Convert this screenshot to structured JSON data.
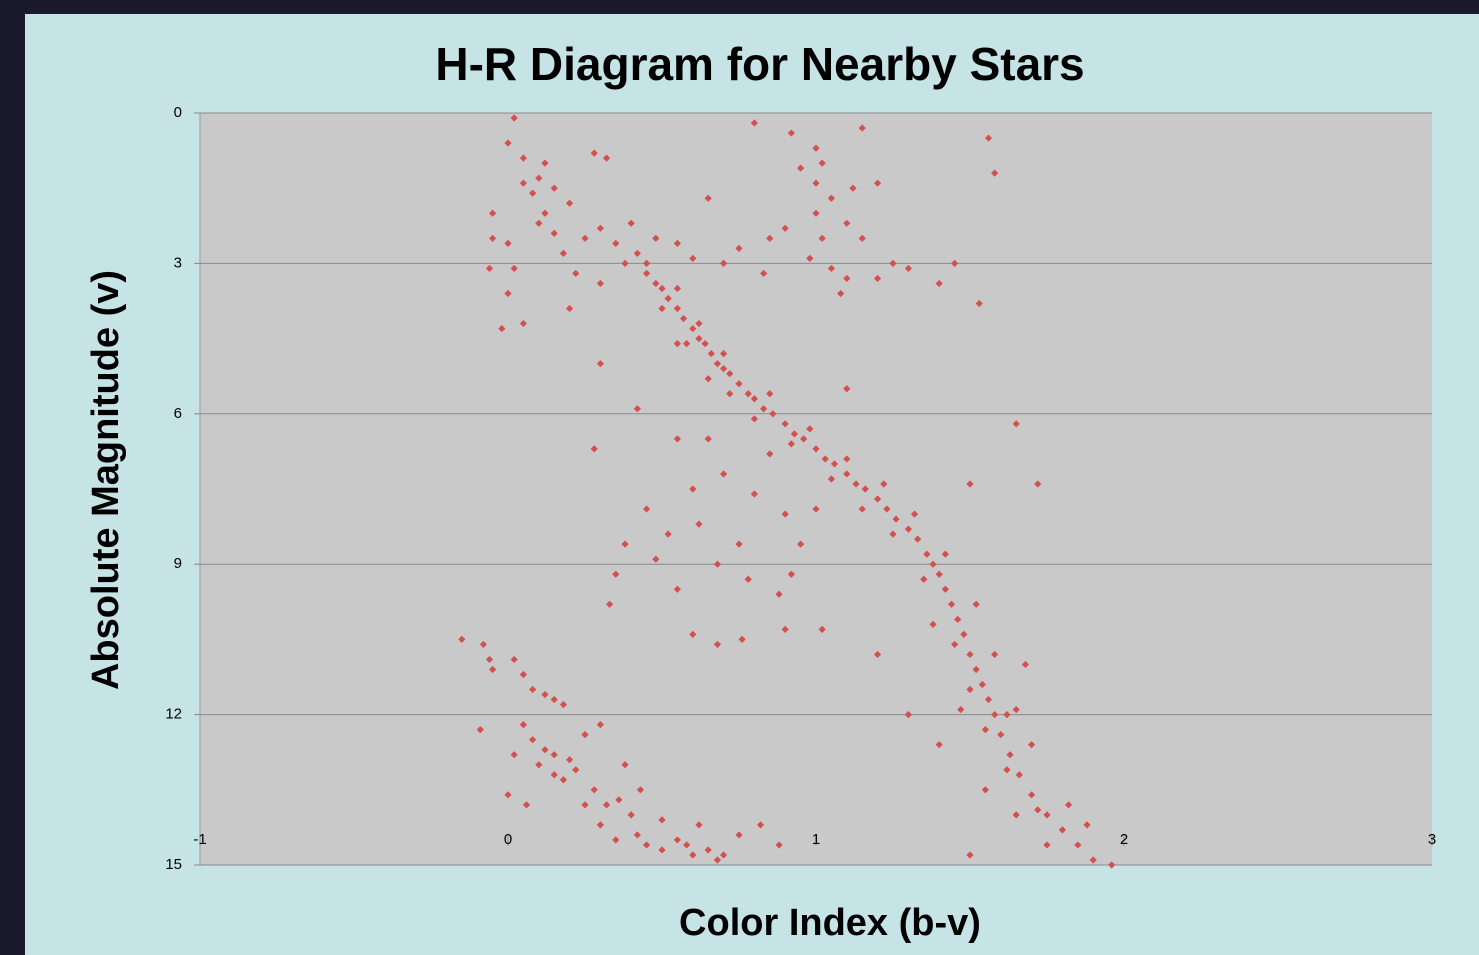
{
  "chart_data": {
    "type": "scatter",
    "title": "H-R Diagram for Nearby Stars",
    "x_label": "Color Index (b-v)",
    "y_label": "Absolute Magnitude (v)",
    "color": "#d4504c",
    "grid": true,
    "y_inverted": true,
    "xlim": [
      -1,
      3
    ],
    "xticks": [
      -1,
      0,
      1,
      2,
      3
    ],
    "ylim": [
      0,
      15
    ],
    "yticks": [
      0,
      3,
      6,
      9,
      12,
      15
    ],
    "x": [
      0.45,
      0.48,
      0.5,
      0.52,
      0.55,
      0.57,
      0.6,
      0.62,
      0.64,
      0.66,
      0.68,
      0.7,
      0.72,
      0.75,
      0.78,
      0.8,
      0.83,
      0.86,
      0.9,
      0.93,
      0.96,
      1.0,
      1.03,
      1.06,
      1.1,
      1.13,
      1.16,
      1.2,
      1.23,
      1.26,
      1.3,
      1.33,
      1.36,
      1.38,
      1.4,
      1.42,
      1.44,
      1.46,
      1.48,
      1.5,
      1.52,
      1.54,
      1.56,
      1.58,
      1.6,
      1.63,
      1.66,
      1.7,
      1.75,
      1.8,
      1.85,
      1.9,
      1.96,
      0.5,
      0.58,
      0.65,
      0.72,
      0.8,
      0.92,
      1.05,
      1.15,
      1.25,
      1.35,
      1.45,
      1.5,
      1.55,
      1.62,
      1.72,
      0.55,
      0.62,
      0.7,
      0.85,
      0.98,
      1.1,
      1.22,
      1.32,
      1.42,
      1.52,
      1.58,
      1.65,
      1.7,
      1.82,
      1.88,
      1.38,
      1.47,
      1.4,
      1.55,
      1.65,
      1.75,
      1.5,
      1.62,
      1.68,
      0.02,
      0.0,
      0.05,
      0.1,
      0.08,
      0.15,
      0.12,
      0.1,
      0.2,
      0.25,
      0.18,
      0.3,
      0.35,
      0.28,
      0.32,
      0.4,
      0.42,
      0.0,
      -0.05,
      -0.05,
      0.02,
      -0.06,
      0.0,
      0.05,
      -0.02,
      0.2,
      0.15,
      0.12,
      0.05,
      0.22,
      0.3,
      0.38,
      0.48,
      0.45,
      0.55,
      0.6,
      0.8,
      0.92,
      1.15,
      1.56,
      1.58,
      1.0,
      1.02,
      0.95,
      1.0,
      1.12,
      1.2,
      1.05,
      1.0,
      1.1,
      1.15,
      1.02,
      0.98,
      0.9,
      0.85,
      0.75,
      1.05,
      1.1,
      1.2,
      1.25,
      1.3,
      1.45,
      1.53,
      1.4,
      1.08,
      0.65,
      0.55,
      0.7,
      0.83,
      0.3,
      0.42,
      0.55,
      0.65,
      0.7,
      0.6,
      0.45,
      0.52,
      0.38,
      0.48,
      0.62,
      0.8,
      0.9,
      0.75,
      0.68,
      0.78,
      0.95,
      0.92,
      0.88,
      0.55,
      0.35,
      0.33,
      0.9,
      1.02,
      0.6,
      0.68,
      0.76,
      0.85,
      1.0,
      1.2,
      1.3,
      1.65,
      1.72,
      1.5,
      0.28,
      1.1,
      -0.15,
      -0.08,
      -0.06,
      -0.05,
      0.02,
      0.05,
      0.08,
      0.12,
      0.15,
      0.18,
      0.05,
      0.08,
      0.02,
      -0.09,
      0.1,
      0.15,
      0.18,
      0.22,
      0.25,
      0.3,
      0.28,
      0.32,
      0.36,
      0.4,
      0.3,
      0.35,
      0.42,
      0.45,
      0.5,
      0.55,
      0.6,
      0.65,
      0.7,
      0.62,
      0.75,
      0.88,
      0.82,
      0.25,
      0.2,
      0.12,
      0.0,
      0.06,
      0.15,
      0.38,
      0.43,
      0.5,
      0.58,
      0.68
    ],
    "values": [
      3.2,
      3.4,
      3.5,
      3.7,
      3.9,
      4.1,
      4.3,
      4.5,
      4.6,
      4.8,
      5.0,
      5.1,
      5.2,
      5.4,
      5.6,
      5.7,
      5.9,
      6.0,
      6.2,
      6.4,
      6.5,
      6.7,
      6.9,
      7.0,
      7.2,
      7.4,
      7.5,
      7.7,
      7.9,
      8.1,
      8.3,
      8.5,
      8.8,
      9.0,
      9.2,
      9.5,
      9.8,
      10.1,
      10.4,
      10.8,
      11.1,
      11.4,
      11.7,
      12.0,
      12.4,
      12.8,
      13.2,
      13.6,
      14.0,
      14.3,
      14.6,
      14.9,
      15.0,
      3.9,
      4.6,
      5.3,
      5.6,
      6.1,
      6.6,
      7.3,
      7.9,
      8.4,
      9.3,
      10.6,
      11.5,
      12.3,
      13.1,
      13.9,
      3.5,
      4.2,
      4.8,
      5.6,
      6.3,
      6.9,
      7.4,
      8.0,
      8.8,
      9.8,
      10.8,
      11.9,
      12.6,
      13.8,
      14.2,
      10.2,
      11.9,
      12.6,
      13.5,
      14.0,
      14.6,
      14.8,
      12.0,
      11.0,
      0.1,
      0.6,
      0.9,
      1.3,
      1.6,
      1.5,
      2.0,
      2.2,
      1.8,
      2.5,
      2.8,
      2.3,
      2.6,
      0.8,
      0.9,
      2.2,
      2.8,
      2.6,
      2.0,
      2.5,
      3.1,
      3.1,
      3.6,
      4.2,
      4.3,
      3.9,
      2.4,
      1.0,
      1.4,
      3.2,
      3.4,
      3.0,
      2.5,
      3.0,
      2.6,
      2.9,
      0.2,
      0.4,
      0.3,
      0.5,
      1.2,
      0.7,
      1.0,
      1.1,
      1.4,
      1.5,
      1.4,
      1.7,
      2.0,
      2.2,
      2.5,
      2.5,
      2.9,
      2.3,
      2.5,
      2.7,
      3.1,
      3.3,
      3.3,
      3.0,
      3.1,
      3.0,
      3.8,
      3.4,
      3.6,
      1.7,
      4.6,
      3.0,
      3.2,
      5.0,
      5.9,
      6.5,
      6.5,
      7.2,
      7.5,
      7.9,
      8.4,
      8.6,
      8.9,
      8.2,
      7.6,
      8.0,
      8.6,
      9.0,
      9.3,
      8.6,
      9.2,
      9.6,
      9.5,
      9.2,
      9.8,
      10.3,
      10.3,
      10.4,
      10.6,
      10.5,
      6.8,
      7.9,
      10.8,
      12.0,
      6.2,
      7.4,
      7.4,
      6.7,
      5.5,
      10.5,
      10.6,
      10.9,
      11.1,
      10.9,
      11.2,
      11.5,
      11.6,
      11.7,
      11.8,
      12.2,
      12.5,
      12.8,
      12.3,
      13.0,
      12.8,
      13.3,
      13.1,
      12.4,
      12.2,
      13.5,
      13.8,
      13.7,
      14.0,
      14.2,
      14.5,
      14.4,
      14.6,
      14.7,
      14.5,
      14.8,
      14.7,
      14.8,
      14.2,
      14.4,
      14.6,
      14.2,
      13.8,
      12.9,
      12.7,
      13.6,
      13.8,
      13.2,
      13.0,
      13.5,
      14.1,
      14.6,
      14.9
    ]
  }
}
